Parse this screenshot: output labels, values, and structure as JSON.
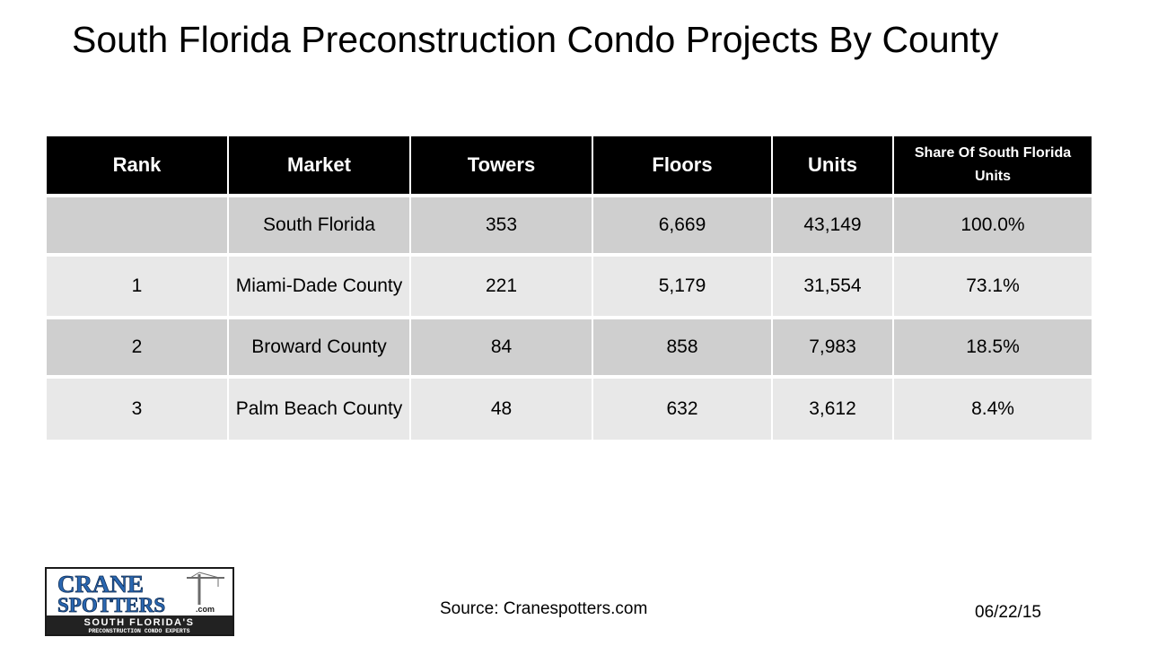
{
  "title": "South Florida Preconstruction Condo Projects By County",
  "table": {
    "headers": [
      "Rank",
      "Market",
      "Towers",
      "Floors",
      "Units",
      "Share Of South Florida Units"
    ],
    "rows": [
      [
        "",
        "South Florida",
        "353",
        "6,669",
        "43,149",
        "100.0%"
      ],
      [
        "1",
        "Miami-Dade County",
        "221",
        "5,179",
        "31,554",
        "73.1%"
      ],
      [
        "2",
        "Broward County",
        "84",
        "858",
        "7,983",
        "18.5%"
      ],
      [
        "3",
        "Palm Beach County",
        "48",
        "632",
        "3,612",
        "8.4%"
      ]
    ]
  },
  "logo": {
    "line1": "CRANE",
    "line2": "SPOTTERS",
    "suffix": ".com",
    "tagline1": "SOUTH FLORIDA'S",
    "tagline2": "PRECONSTRUCTION CONDO EXPERTS"
  },
  "footer": {
    "source": "Source: Cranespotters.com",
    "date": "06/22/15"
  },
  "colors": {
    "header_bg": "#000000",
    "row_dark": "#cfcfcf",
    "row_light": "#e8e8e8",
    "logo_blue": "#2a67b1"
  }
}
